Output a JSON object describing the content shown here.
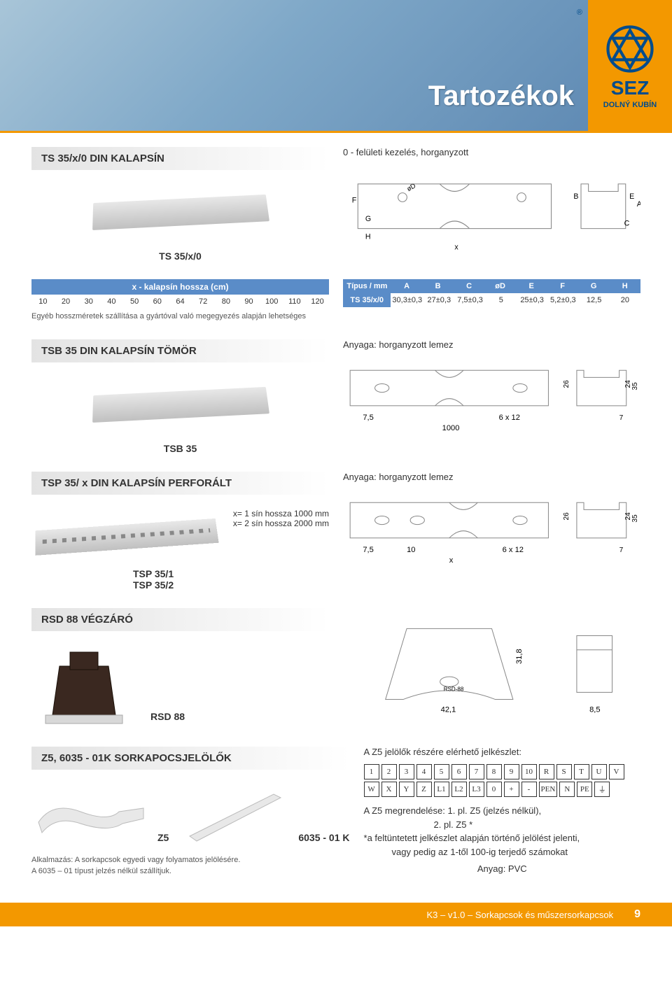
{
  "hero": {
    "title": "Tartozékok",
    "logo_text": "SEZ",
    "logo_sub": "DOLNÝ KUBÍN"
  },
  "sections": {
    "ts35": {
      "header": "TS 35/x/0 DIN KALAPSÍN",
      "desc": "0 - felületi kezelés, horganyzott",
      "label": "TS 35/x/0"
    },
    "tsb35": {
      "header": "TSB 35 DIN KALAPSÍN TÖMÖR",
      "desc": "Anyaga: horganyzott lemez",
      "label": "TSB 35"
    },
    "tsp35": {
      "header": "TSP 35/ x  DIN KALAPSÍN PERFORÁLT",
      "desc": "Anyaga: horganyzott lemez",
      "note1": "x= 1 sín hossza 1000 mm",
      "note2": "x= 2 sín hossza 2000 mm",
      "label1": "TSP 35/1",
      "label2": "TSP 35/2"
    },
    "rsd88": {
      "header": "RSD 88  VÉGZÁRÓ",
      "label": "RSD 88"
    },
    "z5": {
      "header": "Z5, 6035 - 01K  SORKAPOCSJELÖLŐK",
      "desc": "A Z5 jelölők részére elérhető jelkészlet:",
      "label1": "Z5",
      "label2": "6035 - 01 K",
      "usage": "Alkalmazás: A sorkapcsok egyedi vagy folyamatos jelölésére.",
      "note": "A 6035 – 01 típust jelzés nélkül szállítjuk.",
      "order1": "A Z5 megrendelése: 1. pl. Z5 (jelzés nélkül),",
      "order2": "2. pl. Z5 *",
      "order3": "*a feltüntetett jelkészlet alapján történő jelölést jelenti,",
      "order4": "vagy pedig az 1-től 100-ig terjedő számokat",
      "material": "Anyag: PVC"
    }
  },
  "length_table": {
    "caption": "x - kalapsín hossza (cm)",
    "values": [
      "10",
      "20",
      "30",
      "40",
      "50",
      "60",
      "64",
      "72",
      "80",
      "90",
      "100",
      "110",
      "120"
    ],
    "note": "Egyéb hosszméretek szállítása a gyártóval való megegyezés alapján lehetséges"
  },
  "type_table": {
    "headers": [
      "Típus / mm",
      "A",
      "B",
      "C",
      "øD",
      "E",
      "F",
      "G",
      "H"
    ],
    "row_label": "TS 35/x/0",
    "row_values": [
      "30,3±0,3",
      "27±0,3",
      "7,5±0,3",
      "5",
      "25±0,3",
      "5,2±0,3",
      "12,5",
      "20"
    ]
  },
  "tsb35_diagram": {
    "d1": "7,5",
    "d2": "6 x 12",
    "d3": "1000",
    "d4": "26",
    "d5": "24",
    "d6": "35",
    "d7": "7"
  },
  "tsp35_diagram": {
    "d1": "7,5",
    "d2": "10",
    "d3": "6 x 12",
    "d4": "x",
    "d5": "26",
    "d6": "24",
    "d7": "35",
    "d8": "7"
  },
  "rsd88_diagram": {
    "d1": "42,1",
    "d2": "31,8",
    "d3": "8,5"
  },
  "ts35_diagram": {
    "F": "F",
    "G": "G",
    "H": "H",
    "B": "B",
    "E": "E",
    "A": "A",
    "C": "C",
    "x": "x",
    "oD": "øD"
  },
  "markers": [
    "1",
    "2",
    "3",
    "4",
    "5",
    "6",
    "7",
    "8",
    "9",
    "10",
    "R",
    "S",
    "T",
    "U",
    "V",
    "W",
    "X",
    "Y",
    "Z",
    "L1",
    "L2",
    "L3",
    "0",
    "+",
    "-",
    "PEN",
    "N",
    "PE",
    "⏚"
  ],
  "footer": {
    "text": "K3 – v1.0 – Sorkapcsok és műszersorkapcsok",
    "page": "9"
  },
  "colors": {
    "accent": "#f39800",
    "blue": "#5a8cc8",
    "logo_text": "#004c8c",
    "header_bg": "#e3e3e3"
  }
}
